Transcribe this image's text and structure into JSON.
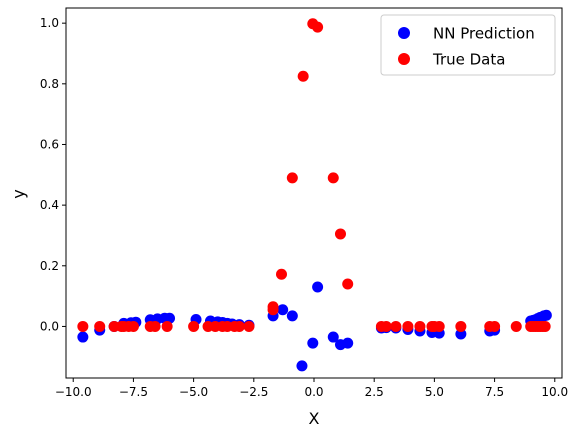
{
  "chart_data": {
    "type": "scatter",
    "title": "",
    "xlabel": "X",
    "ylabel": "y",
    "xlim": [
      -10.3,
      10.3
    ],
    "ylim": [
      -0.17,
      1.05
    ],
    "xticks": [
      -10.0,
      -7.5,
      -5.0,
      -2.5,
      0.0,
      2.5,
      5.0,
      7.5,
      10.0
    ],
    "xtick_labels": [
      "−10.0",
      "−7.5",
      "−5.0",
      "−2.5",
      "0.0",
      "2.5",
      "5.0",
      "7.5",
      "10.0"
    ],
    "yticks": [
      0.0,
      0.2,
      0.4,
      0.6,
      0.8,
      1.0
    ],
    "ytick_labels": [
      "0.0",
      "0.2",
      "0.4",
      "0.6",
      "0.8",
      "1.0"
    ],
    "grid": false,
    "legend_position": "top-right",
    "series": [
      {
        "name": "NN Prediction",
        "color": "#0000ff",
        "points": [
          [
            -9.6,
            -0.035
          ],
          [
            -8.9,
            -0.012
          ],
          [
            -8.3,
            0.0
          ],
          [
            -7.9,
            0.01
          ],
          [
            -7.6,
            0.012
          ],
          [
            -7.4,
            0.014
          ],
          [
            -6.8,
            0.022
          ],
          [
            -6.5,
            0.025
          ],
          [
            -6.2,
            0.027
          ],
          [
            -6.0,
            0.027
          ],
          [
            -4.9,
            0.023
          ],
          [
            -4.3,
            0.018
          ],
          [
            -4.0,
            0.015
          ],
          [
            -3.8,
            0.013
          ],
          [
            -3.6,
            0.01
          ],
          [
            -3.4,
            0.008
          ],
          [
            -3.1,
            0.006
          ],
          [
            -2.7,
            0.004
          ],
          [
            -1.7,
            0.035
          ],
          [
            -1.3,
            0.055
          ],
          [
            -0.9,
            0.035
          ],
          [
            -0.5,
            -0.13
          ],
          [
            -0.05,
            -0.055
          ],
          [
            0.15,
            0.13
          ],
          [
            0.8,
            -0.035
          ],
          [
            1.1,
            -0.06
          ],
          [
            1.4,
            -0.055
          ],
          [
            2.8,
            -0.005
          ],
          [
            3.0,
            -0.004
          ],
          [
            3.4,
            -0.005
          ],
          [
            3.9,
            -0.01
          ],
          [
            4.4,
            -0.015
          ],
          [
            4.9,
            -0.02
          ],
          [
            5.2,
            -0.022
          ],
          [
            6.1,
            -0.025
          ],
          [
            7.3,
            -0.015
          ],
          [
            7.5,
            -0.012
          ],
          [
            9.0,
            0.018
          ],
          [
            9.1,
            0.02
          ],
          [
            9.2,
            0.022
          ],
          [
            9.3,
            0.026
          ],
          [
            9.4,
            0.03
          ],
          [
            9.55,
            0.035
          ],
          [
            9.65,
            0.037
          ]
        ]
      },
      {
        "name": "True Data",
        "color": "#ff0000",
        "points": [
          [
            -9.6,
            0.0
          ],
          [
            -8.9,
            0.0
          ],
          [
            -8.3,
            0.0
          ],
          [
            -8.0,
            0.0
          ],
          [
            -7.9,
            0.0
          ],
          [
            -7.7,
            0.0
          ],
          [
            -7.5,
            0.0
          ],
          [
            -6.8,
            0.0
          ],
          [
            -6.6,
            0.0
          ],
          [
            -6.1,
            0.0
          ],
          [
            -5.0,
            0.0
          ],
          [
            -4.4,
            0.0
          ],
          [
            -4.1,
            0.0
          ],
          [
            -3.8,
            0.0
          ],
          [
            -3.6,
            0.0
          ],
          [
            -3.3,
            0.0
          ],
          [
            -3.1,
            0.0
          ],
          [
            -2.7,
            0.0
          ],
          [
            -1.7,
            0.065
          ],
          [
            -1.7,
            0.055
          ],
          [
            -1.35,
            0.172
          ],
          [
            -0.9,
            0.49
          ],
          [
            -0.45,
            0.825
          ],
          [
            -0.05,
            0.998
          ],
          [
            0.15,
            0.987
          ],
          [
            0.8,
            0.49
          ],
          [
            1.1,
            0.305
          ],
          [
            1.4,
            0.14
          ],
          [
            2.8,
            0.0
          ],
          [
            3.0,
            0.0
          ],
          [
            3.4,
            0.0
          ],
          [
            3.9,
            0.0
          ],
          [
            4.4,
            0.0
          ],
          [
            4.9,
            0.0
          ],
          [
            5.0,
            0.0
          ],
          [
            5.2,
            0.0
          ],
          [
            6.1,
            0.0
          ],
          [
            7.3,
            0.0
          ],
          [
            7.5,
            0.0
          ],
          [
            8.4,
            0.0
          ],
          [
            9.0,
            0.0
          ],
          [
            9.1,
            0.0
          ],
          [
            9.2,
            0.0
          ],
          [
            9.3,
            0.0
          ],
          [
            9.4,
            0.0
          ],
          [
            9.5,
            0.0
          ],
          [
            9.6,
            0.0
          ]
        ]
      }
    ]
  }
}
